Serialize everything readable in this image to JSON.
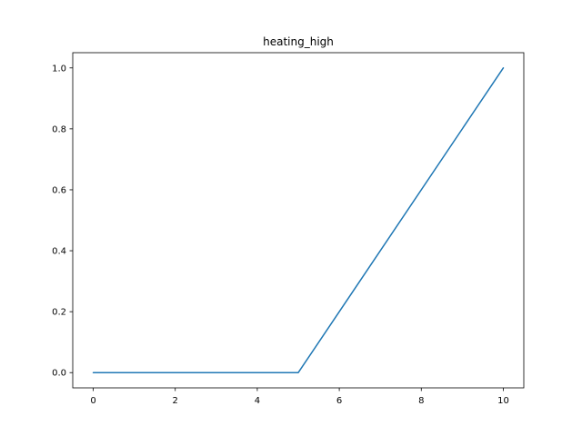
{
  "chart_data": {
    "type": "line",
    "title": "heating_high",
    "xlabel": "",
    "ylabel": "",
    "xlim": [
      -0.5,
      10.5
    ],
    "ylim": [
      -0.05,
      1.05
    ],
    "xticks": [
      0,
      2,
      4,
      6,
      8,
      10
    ],
    "xtick_labels": [
      "0",
      "2",
      "4",
      "6",
      "8",
      "10"
    ],
    "yticks": [
      0.0,
      0.2,
      0.4,
      0.6,
      0.8,
      1.0
    ],
    "ytick_labels": [
      "0.0",
      "0.2",
      "0.4",
      "0.6",
      "0.8",
      "1.0"
    ],
    "grid": false,
    "legend": "none",
    "series": [
      {
        "color": "#1f77b4",
        "x": [
          0,
          5,
          10
        ],
        "y": [
          0,
          0,
          1
        ]
      }
    ]
  }
}
